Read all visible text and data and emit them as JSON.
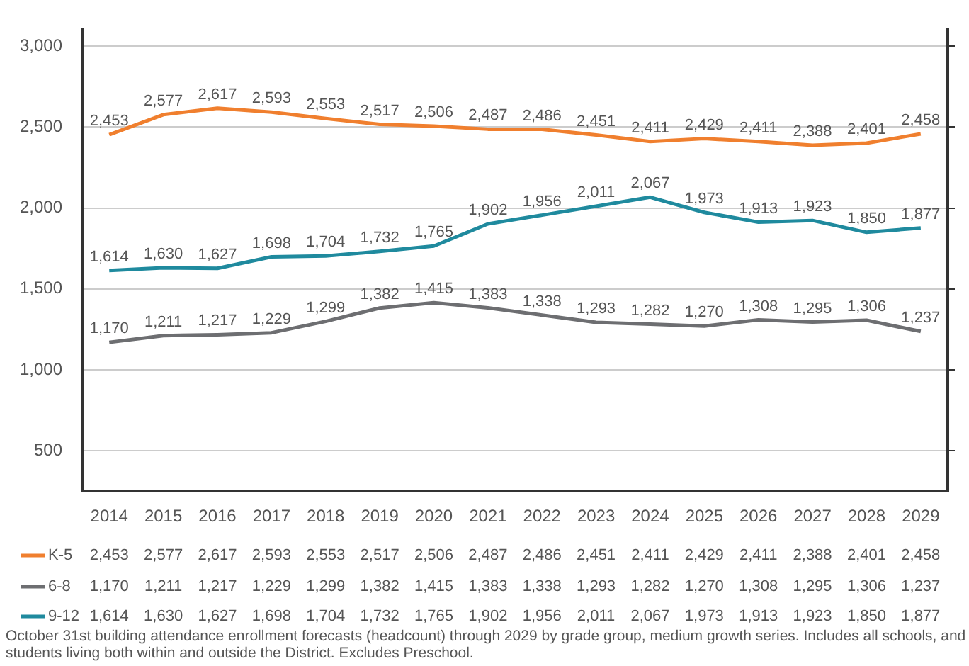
{
  "chart_data": {
    "type": "line",
    "categories": [
      "2014",
      "2015",
      "2016",
      "2017",
      "2018",
      "2019",
      "2020",
      "2021",
      "2022",
      "2023",
      "2024",
      "2025",
      "2026",
      "2027",
      "2028",
      "2029"
    ],
    "series": [
      {
        "name": "K-5",
        "color": "#f07f2e",
        "values": [
          2453,
          2577,
          2617,
          2593,
          2553,
          2517,
          2506,
          2487,
          2486,
          2451,
          2411,
          2429,
          2411,
          2388,
          2401,
          2458
        ],
        "value_labels": [
          "2,453",
          "2,577",
          "2,617",
          "2,593",
          "2,553",
          "2,517",
          "2,506",
          "2,487",
          "2,486",
          "2,451",
          "2,411",
          "2,429",
          "2,411",
          "2,388",
          "2,401",
          "2,458"
        ]
      },
      {
        "name": "6-8",
        "color": "#6d6e71",
        "values": [
          1170,
          1211,
          1217,
          1229,
          1299,
          1382,
          1415,
          1383,
          1338,
          1293,
          1282,
          1270,
          1308,
          1295,
          1306,
          1237
        ],
        "value_labels": [
          "1,170",
          "1,211",
          "1,217",
          "1,229",
          "1,299",
          "1,382",
          "1,415",
          "1,383",
          "1,338",
          "1,293",
          "1,282",
          "1,270",
          "1,308",
          "1,295",
          "1,306",
          "1,237"
        ]
      },
      {
        "name": "9-12",
        "color": "#1f8a9e",
        "values": [
          1614,
          1630,
          1627,
          1698,
          1704,
          1732,
          1765,
          1902,
          1956,
          2011,
          2067,
          1973,
          1913,
          1923,
          1850,
          1877
        ],
        "value_labels": [
          "1,614",
          "1,630",
          "1,627",
          "1,698",
          "1,704",
          "1,732",
          "1,765",
          "1,902",
          "1,956",
          "2,011",
          "2,067",
          "1,973",
          "1,913",
          "1,923",
          "1,850",
          "1,877"
        ]
      }
    ],
    "ylim": [
      250,
      3100
    ],
    "yticks": [
      {
        "value": 500,
        "label": "500"
      },
      {
        "value": 1000,
        "label": "1,000"
      },
      {
        "value": 1500,
        "label": "1,500"
      },
      {
        "value": 2000,
        "label": "2,000"
      },
      {
        "value": 2500,
        "label": "2,500"
      },
      {
        "value": 3000,
        "label": "3,000"
      }
    ],
    "grid": "y",
    "legend": "bottom",
    "marker": "none",
    "line_style": "solid",
    "annotations": [
      "October 31st building attendance enrollment forecasts (headcount) through 2029 by grade group, medium growth series. Includes all schools, and\nstudents living both within and outside the District. Excludes Preschool."
    ]
  }
}
